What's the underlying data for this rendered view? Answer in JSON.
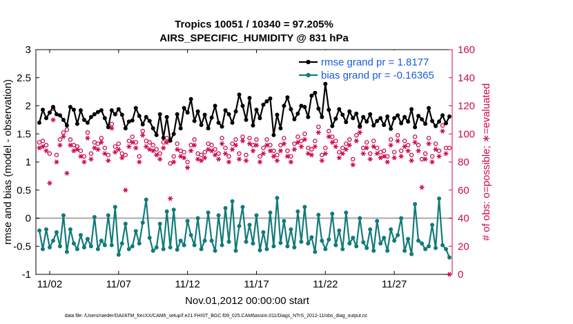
{
  "chart_data": {
    "type": "line",
    "title_line1": "Tropics 10051 / 10340 = 97.205%",
    "title_line2": "AIRS_SPECIFIC_HUMIDITY @ 831 hPa",
    "xlabel": "Nov.01,2012 00:00:00 start",
    "ylabel_left": "rmse and bias (model - observation)",
    "ylabel_right": "# of obs: o=possible; ∗=evaluated",
    "footnote": "data file: /Users/raeder/DAI/ATM_forcXX/CAM6_setup/f.e21.FHIST_BGC.f09_025.CAM6assim.011/Diags_NTrS_2012-11/obs_diag_output.nc",
    "x_ticks": [
      {
        "label": "11/02",
        "day": 1
      },
      {
        "label": "11/07",
        "day": 6
      },
      {
        "label": "11/12",
        "day": 11
      },
      {
        "label": "11/17",
        "day": 16
      },
      {
        "label": "11/22",
        "day": 21
      },
      {
        "label": "11/27",
        "day": 26
      }
    ],
    "xlim": [
      0,
      30.2
    ],
    "ylim_left": [
      -1,
      3
    ],
    "yticks_left": [
      "-1",
      "-0.5",
      "0",
      "0.5",
      "1",
      "1.5",
      "2",
      "2.5",
      "3"
    ],
    "ylim_right": [
      0,
      160
    ],
    "yticks_right": [
      "0",
      "20",
      "40",
      "60",
      "80",
      "100",
      "120",
      "140",
      "160"
    ],
    "legend": [
      {
        "label": "rmse grand pr = 1.8177",
        "color": "#000000"
      },
      {
        "label": "bias grand pr = -0.16365",
        "color": "#127a7a"
      }
    ],
    "colors": {
      "rmse": "#000000",
      "bias": "#127a7a",
      "obs": "#cc0a4a",
      "zero": "#b0b0b0"
    },
    "n_steps": 120,
    "x_start_day": 0.25,
    "x_step_days": 0.25,
    "rmse": [
      1.7,
      1.93,
      1.78,
      1.88,
      1.98,
      1.85,
      1.83,
      1.75,
      1.65,
      1.98,
      1.93,
      1.68,
      1.92,
      1.75,
      1.7,
      1.8,
      1.85,
      1.89,
      1.92,
      1.78,
      1.62,
      1.92,
      1.85,
      1.94,
      1.84,
      1.6,
      1.72,
      1.74,
      1.96,
      1.82,
      1.67,
      1.8,
      1.73,
      1.6,
      1.48,
      1.85,
      1.43,
      1.8,
      1.38,
      1.5,
      1.85,
      1.6,
      1.96,
      1.88,
      2.12,
      1.73,
      1.9,
      1.66,
      1.84,
      1.6,
      1.79,
      2.0,
      1.7,
      1.63,
      1.92,
      1.85,
      1.7,
      1.9,
      2.2,
      2.0,
      1.75,
      2.14,
      1.65,
      1.93,
      1.78,
      2.02,
      2.08,
      2.13,
      1.48,
      1.84,
      1.6,
      2.0,
      2.15,
      1.94,
      1.76,
      1.86,
      2.0,
      1.98,
      1.8,
      2.18,
      2.23,
      1.95,
      1.8,
      2.39,
      1.93,
      1.64,
      1.77,
      1.94,
      1.84,
      1.71,
      1.9,
      1.78,
      1.86,
      1.64,
      1.8,
      1.72,
      1.85,
      1.65,
      1.73,
      1.78,
      1.66,
      1.81,
      1.59,
      1.78,
      1.83,
      1.69,
      1.8,
      1.72,
      1.94,
      1.62,
      1.82,
      1.76,
      1.68,
      1.96,
      1.73,
      1.64,
      1.72,
      1.83,
      1.69,
      1.81
    ],
    "bias": [
      -0.22,
      -0.55,
      -0.2,
      -0.52,
      -0.4,
      -0.25,
      -0.5,
      0.05,
      -0.6,
      -0.2,
      -0.45,
      -0.55,
      -0.3,
      -0.52,
      -0.37,
      -0.5,
      0.02,
      -0.55,
      -0.4,
      -0.48,
      0.05,
      -0.48,
      0.2,
      -0.65,
      -0.45,
      -0.1,
      -0.55,
      -0.5,
      -0.23,
      -0.45,
      -0.08,
      0.33,
      -0.35,
      -0.58,
      -0.52,
      -0.1,
      -0.55,
      0.12,
      -0.52,
      0.15,
      -0.56,
      -0.4,
      -0.48,
      -0.05,
      -0.3,
      -0.48,
      0.0,
      -0.55,
      -0.4,
      0.1,
      -0.4,
      -0.58,
      0.05,
      -0.48,
      0.18,
      -0.42,
      0.3,
      -0.58,
      -0.14,
      0.2,
      -0.42,
      -0.12,
      -0.45,
      0.05,
      -0.57,
      -0.25,
      -0.55,
      0.1,
      -0.5,
      0.36,
      -0.44,
      -0.05,
      -0.5,
      -0.2,
      -0.52,
      0.12,
      -0.42,
      0.2,
      -0.45,
      -0.34,
      -0.6,
      0.06,
      -0.4,
      -0.55,
      -0.38,
      0.08,
      -0.48,
      -0.22,
      -0.55,
      0.1,
      -0.45,
      -0.35,
      -0.5,
      0.0,
      -0.43,
      -0.53,
      -0.2,
      -0.58,
      -0.05,
      -0.45,
      -0.35,
      -0.58,
      -0.2,
      -0.4,
      -0.3,
      0.0,
      -0.58,
      -0.37,
      -0.64,
      0.25,
      -0.4,
      -0.45,
      -0.55,
      -0.5,
      -0.12,
      -0.53,
      0.35,
      -0.48,
      -0.55,
      -0.7
    ],
    "obs_possible": [
      94,
      95,
      92,
      86,
      118,
      85,
      96,
      101,
      103,
      96,
      92,
      91,
      88,
      84,
      101,
      86,
      94,
      93,
      97,
      90,
      85,
      107,
      91,
      93,
      86,
      85,
      95,
      98,
      94,
      84,
      102,
      95,
      94,
      92,
      89,
      86,
      94,
      97,
      79,
      84,
      93,
      88,
      87,
      80,
      92,
      96,
      86,
      85,
      87,
      93,
      92,
      89,
      86,
      97,
      90,
      84,
      93,
      96,
      86,
      98,
      85,
      97,
      92,
      96,
      84,
      90,
      96,
      92,
      88,
      85,
      92,
      97,
      88,
      84,
      93,
      98,
      95,
      100,
      90,
      89,
      95,
      105,
      85,
      90,
      102,
      98,
      95,
      87,
      90,
      93,
      96,
      82,
      99,
      105,
      90,
      94,
      86,
      95,
      90,
      87,
      88,
      84,
      96,
      87,
      99,
      88,
      95,
      92,
      85,
      98,
      92,
      82,
      86,
      97,
      84,
      93,
      88,
      106,
      90,
      90
    ],
    "obs_evaluated": [
      90,
      91,
      88,
      65,
      110,
      80,
      92,
      98,
      72,
      92,
      88,
      89,
      84,
      80,
      97,
      82,
      90,
      89,
      94,
      86,
      81,
      104,
      87,
      89,
      83,
      60,
      91,
      94,
      90,
      80,
      99,
      91,
      89,
      88,
      85,
      82,
      90,
      94,
      54,
      80,
      89,
      84,
      83,
      76,
      88,
      92,
      82,
      81,
      83,
      89,
      88,
      85,
      82,
      93,
      86,
      80,
      89,
      92,
      82,
      95,
      81,
      93,
      88,
      92,
      80,
      86,
      92,
      88,
      84,
      81,
      88,
      93,
      84,
      80,
      89,
      94,
      91,
      96,
      86,
      85,
      91,
      101,
      81,
      86,
      98,
      94,
      91,
      83,
      86,
      89,
      92,
      78,
      95,
      101,
      86,
      90,
      82,
      91,
      86,
      83,
      84,
      80,
      92,
      83,
      95,
      84,
      91,
      88,
      81,
      94,
      88,
      62,
      82,
      93,
      80,
      89,
      84,
      102,
      86,
      0
    ]
  }
}
